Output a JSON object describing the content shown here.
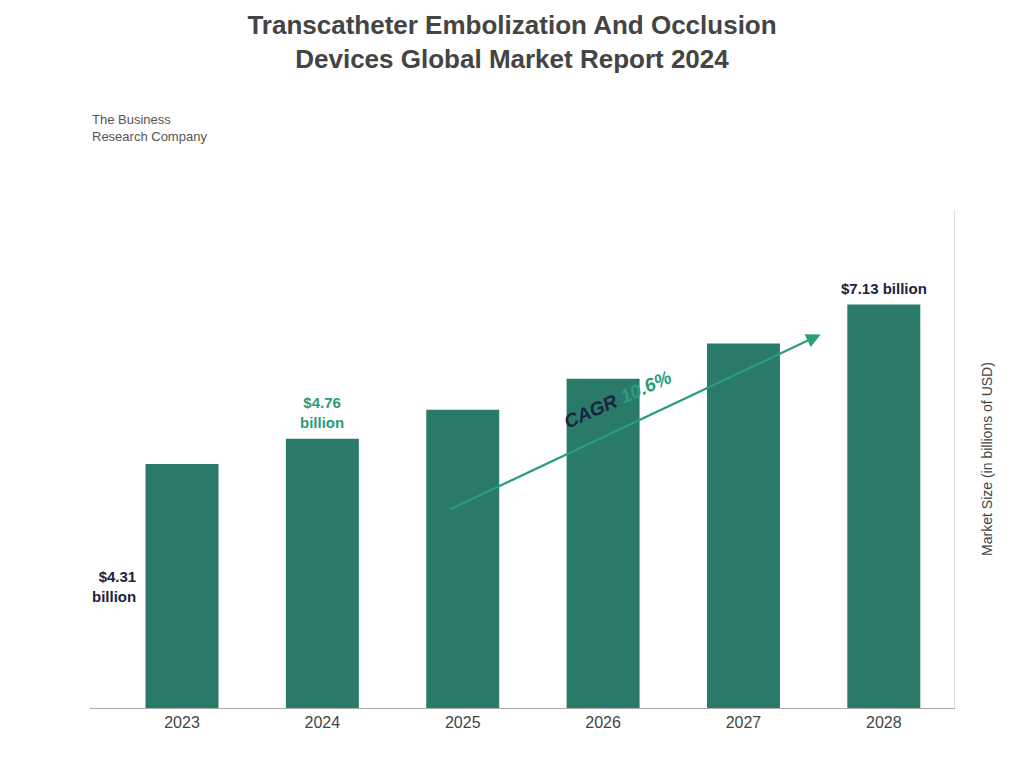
{
  "chart_data": {
    "type": "bar",
    "title": "Transcatheter Embolization And Occlusion\nDevices Global Market Report 2024",
    "categories": [
      "2023",
      "2024",
      "2025",
      "2026",
      "2027",
      "2028"
    ],
    "values": [
      4.31,
      4.76,
      5.27,
      5.82,
      6.44,
      7.13
    ],
    "color": "#2a7a6a",
    "ylabel": "Market Size (in billions of USD)",
    "ylim": [
      0,
      8.8
    ],
    "grid": false,
    "tick_labels": "x",
    "annotations": [
      {
        "text": "$4.31\nbillion",
        "category": "2023",
        "color": "#1a2340"
      },
      {
        "text": "$4.76\nbillion",
        "category": "2024",
        "color": "#2a9d7a"
      },
      {
        "text": "$7.13 billion",
        "category": "2028",
        "color": "#1a2340"
      },
      {
        "text": "CAGR",
        "color": "#1a2340"
      },
      {
        "text": "10.6%",
        "color": "#2a9d7a"
      },
      {
        "text": "The Business\nResearch Company"
      }
    ]
  }
}
